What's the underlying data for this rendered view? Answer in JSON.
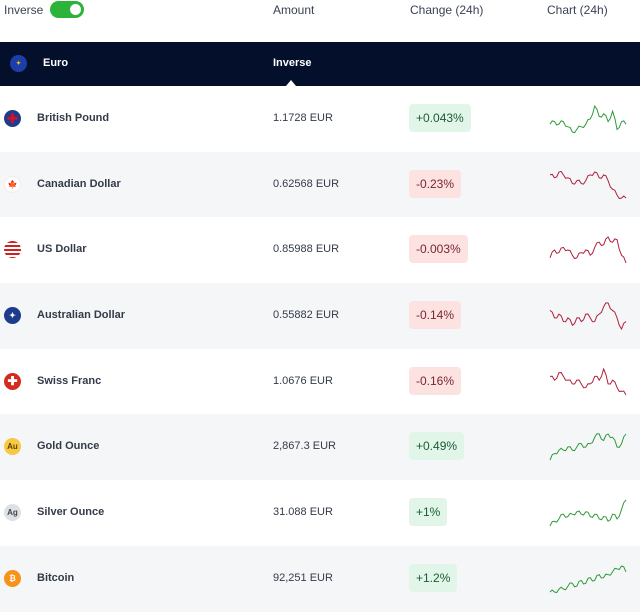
{
  "top": {
    "inverse_label": "Inverse",
    "inverse_on": true,
    "amount": "Amount",
    "change": "Change (24h)",
    "chart": "Chart (24h)"
  },
  "header": {
    "base": "Euro",
    "mode": "Inverse"
  },
  "colors": {
    "up": "#2f9a3a",
    "down": "#b0203a",
    "header": "#040f2c"
  },
  "rows": [
    {
      "icon": "uk-flag-icon",
      "name": "British Pound",
      "amount": "1.1728 EUR",
      "change": "+0.043%",
      "dir": "up",
      "spark": [
        5,
        6,
        5,
        6,
        4,
        2,
        3,
        4,
        5,
        7,
        12,
        8,
        9,
        6,
        10,
        3,
        6,
        5
      ]
    },
    {
      "icon": "canada-flag-icon",
      "name": "Canadian Dollar",
      "amount": "0.62568 EUR",
      "change": "-0.23%",
      "dir": "down",
      "spark": [
        8,
        7,
        9,
        8,
        7,
        5,
        6,
        5,
        6,
        8,
        9,
        7,
        8,
        6,
        3,
        1,
        0,
        0
      ]
    },
    {
      "icon": "us-flag-icon",
      "name": "US Dollar",
      "amount": "0.85988 EUR",
      "change": "-0.003%",
      "dir": "down",
      "spark": [
        3,
        6,
        5,
        7,
        6,
        4,
        3,
        5,
        6,
        4,
        7,
        9,
        8,
        11,
        9,
        10,
        4,
        1
      ]
    },
    {
      "icon": "australia-flag-icon",
      "name": "Australian Dollar",
      "amount": "0.55882 EUR",
      "change": "-0.14%",
      "dir": "down",
      "spark": [
        8,
        6,
        7,
        5,
        6,
        4,
        6,
        5,
        7,
        6,
        5,
        7,
        9,
        10,
        8,
        6,
        3,
        5
      ]
    },
    {
      "icon": "swiss-flag-icon",
      "name": "Swiss Franc",
      "amount": "1.0676 EUR",
      "change": "-0.16%",
      "dir": "down",
      "spark": [
        7,
        6,
        8,
        7,
        6,
        5,
        6,
        5,
        4,
        5,
        7,
        6,
        9,
        5,
        6,
        4,
        3,
        2
      ]
    },
    {
      "icon": "gold-icon",
      "name": "Gold Ounce",
      "amount": "2,867.3 EUR",
      "change": "+0.49%",
      "dir": "up",
      "spark": [
        1,
        3,
        4,
        4,
        5,
        4,
        5,
        6,
        5,
        6,
        8,
        9,
        7,
        9,
        8,
        5,
        6,
        9
      ]
    },
    {
      "icon": "silver-icon",
      "name": "Silver Ounce",
      "amount": "31.088 EUR",
      "change": "+1%",
      "dir": "up",
      "spark": [
        1,
        3,
        4,
        6,
        5,
        6,
        7,
        6,
        7,
        5,
        6,
        4,
        5,
        3,
        6,
        4,
        8,
        12
      ]
    },
    {
      "icon": "bitcoin-icon",
      "name": "Bitcoin",
      "amount": "92,251 EUR",
      "change": "+1.2%",
      "dir": "up",
      "spark": [
        1,
        1,
        2,
        2,
        3,
        4,
        3,
        5,
        4,
        6,
        5,
        7,
        6,
        7,
        8,
        9,
        10,
        8
      ]
    }
  ],
  "badges": {
    "gold": "Au",
    "silver": "Ag",
    "bitcoin": "₿"
  }
}
